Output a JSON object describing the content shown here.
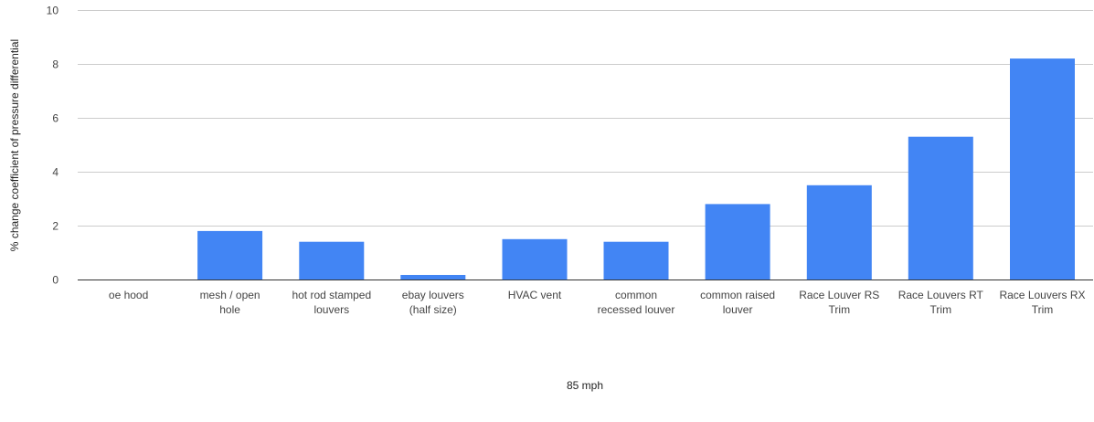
{
  "chart_data": {
    "type": "bar",
    "title": "",
    "xlabel": "85 mph",
    "ylabel": "% change coefficient of pressure differential",
    "ylim": [
      0,
      10
    ],
    "yticks": [
      0,
      2,
      4,
      6,
      8,
      10
    ],
    "grid": true,
    "legend": "none",
    "bar_color": "#4285f4",
    "categories": [
      [
        "oe hood"
      ],
      [
        "mesh / open",
        "hole"
      ],
      [
        "hot rod stamped",
        "louvers"
      ],
      [
        "ebay louvers",
        "(half size)"
      ],
      [
        "HVAC vent"
      ],
      [
        "common",
        "recessed louver"
      ],
      [
        "common raised",
        "louver"
      ],
      [
        "Race Louver RS",
        "Trim"
      ],
      [
        "Race Louvers RT",
        "Trim"
      ],
      [
        "Race Louvers RX",
        "Trim"
      ]
    ],
    "values": [
      0,
      1.8,
      1.4,
      0.17,
      1.5,
      1.4,
      2.8,
      3.5,
      5.3,
      8.2
    ]
  }
}
